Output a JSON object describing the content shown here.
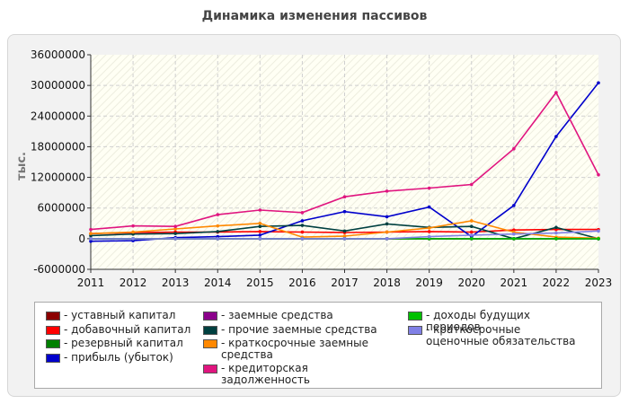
{
  "chart_data": {
    "type": "line",
    "title": "Динамика изменения пассивов",
    "xlabel": "",
    "ylabel": "тыс.",
    "ylim": [
      -6000000,
      36000000
    ],
    "yticks": [
      -6000000,
      0,
      6000000,
      12000000,
      18000000,
      24000000,
      30000000,
      36000000
    ],
    "ytick_labels": [
      "-6000000",
      "0",
      "6000000",
      "12000000",
      "18000000",
      "24000000",
      "30000000",
      "36000000"
    ],
    "x": [
      "2011",
      "2012",
      "2013",
      "2014",
      "2015",
      "2016",
      "2017",
      "2018",
      "2019",
      "2020",
      "2021",
      "2022",
      "2023"
    ],
    "grid": true,
    "legend_position": "bottom",
    "series": [
      {
        "name": "уставный капитал",
        "color": "#8b0000",
        "values": [
          0,
          0,
          0,
          0,
          0,
          0,
          0,
          0,
          0,
          0,
          0,
          0,
          0
        ]
      },
      {
        "name": "добавочный капитал",
        "color": "#ff0000",
        "values": [
          1000000,
          1200000,
          1300000,
          1300000,
          1400000,
          1300000,
          1200000,
          1300000,
          1400000,
          1300000,
          1700000,
          1800000,
          1800000
        ]
      },
      {
        "name": "резервный капитал",
        "color": "#008000",
        "values": [
          0,
          0,
          0,
          0,
          0,
          0,
          0,
          0,
          0,
          0,
          0,
          0,
          0
        ]
      },
      {
        "name": "прибыль (убыток)",
        "color": "#0000cc",
        "values": [
          -500000,
          -400000,
          200000,
          400000,
          700000,
          3500000,
          5300000,
          4300000,
          6200000,
          400000,
          6500000,
          20000000,
          30500000
        ]
      },
      {
        "name": "заемные средства",
        "color": "#8b008b",
        "values": [
          0,
          0,
          0,
          0,
          0,
          0,
          0,
          0,
          0,
          0,
          0,
          0,
          0
        ]
      },
      {
        "name": "прочие заемные средства",
        "color": "#004040",
        "values": [
          600000,
          900000,
          1000000,
          1400000,
          2400000,
          2600000,
          1500000,
          2900000,
          2200000,
          2400000,
          0,
          2200000,
          0
        ]
      },
      {
        "name": "краткосрочные заемные средства",
        "color": "#ff8800",
        "values": [
          1000000,
          1300000,
          1900000,
          2500000,
          3000000,
          300000,
          500000,
          1300000,
          2100000,
          3500000,
          1300000,
          300000,
          100000
        ]
      },
      {
        "name": "кредиторская задолженность",
        "color": "#e0157f",
        "values": [
          1800000,
          2500000,
          2400000,
          4700000,
          5600000,
          5100000,
          8200000,
          9300000,
          9900000,
          10600000,
          17600000,
          28600000,
          12500000
        ]
      },
      {
        "name": "доходы будущих периодов",
        "color": "#00c000",
        "values": [
          0,
          0,
          0,
          0,
          0,
          0,
          0,
          0,
          0,
          0,
          0,
          0,
          0
        ]
      },
      {
        "name": "краткосрочные оценочные обязательства",
        "color": "#8080e6",
        "values": [
          0,
          0,
          0,
          0,
          0,
          0,
          0,
          0,
          400000,
          700000,
          900000,
          1100000,
          1500000
        ]
      }
    ]
  }
}
